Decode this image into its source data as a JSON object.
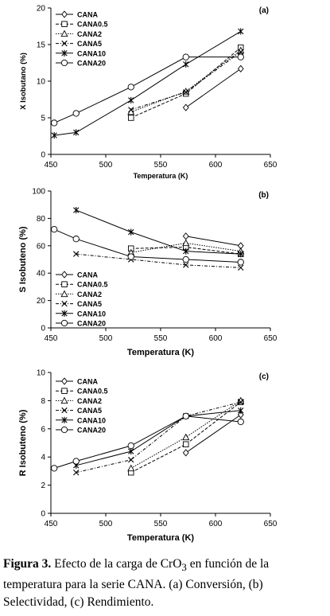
{
  "caption": {
    "label": "Figura 3.",
    "text": "Efecto de la carga de CrO",
    "subscript": "3",
    "text2": "en función de la temperatura para la serie CANA. (a) Conversión, (b) Selectividad, (c) Rendimiento."
  },
  "chart_data": [
    {
      "type": "line",
      "panel_label": "(a)",
      "xlabel": "Temperatura (K)",
      "ylabel": "X Isobutano (%)",
      "xlim": [
        450,
        650
      ],
      "ylim": [
        0,
        20
      ],
      "xticks": [
        450,
        500,
        550,
        600,
        650
      ],
      "yticks": [
        0,
        5,
        10,
        15,
        20
      ],
      "legend_position": "top-left",
      "series": [
        {
          "name": "CANA",
          "marker": "diamond",
          "x": [
            573,
            623
          ],
          "y": [
            6.4,
            11.7
          ]
        },
        {
          "name": "CANA0.5",
          "marker": "square",
          "x": [
            523,
            573,
            623
          ],
          "y": [
            5.0,
            8.3,
            14.6
          ]
        },
        {
          "name": "CANA2",
          "marker": "triangle",
          "x": [
            523,
            573,
            623
          ],
          "y": [
            5.8,
            8.6,
            14.2
          ]
        },
        {
          "name": "CANA5",
          "marker": "x",
          "x": [
            523,
            573,
            623
          ],
          "y": [
            6.1,
            8.5,
            14.0
          ]
        },
        {
          "name": "CANA10",
          "marker": "star",
          "x": [
            453,
            473,
            523,
            573,
            623
          ],
          "y": [
            2.6,
            3.0,
            7.4,
            12.3,
            16.8
          ]
        },
        {
          "name": "CANA20",
          "marker": "circle",
          "x": [
            453,
            473,
            523,
            573,
            623
          ],
          "y": [
            4.3,
            5.6,
            9.2,
            13.3,
            13.3
          ]
        }
      ]
    },
    {
      "type": "line",
      "panel_label": "(b)",
      "xlabel": "Temperatura (K)",
      "ylabel": "S Isobuteno (%)",
      "xlim": [
        450,
        650
      ],
      "ylim": [
        0,
        100
      ],
      "xticks": [
        450,
        500,
        550,
        600,
        650
      ],
      "yticks": [
        0,
        20,
        40,
        60,
        80,
        100
      ],
      "legend_position": "bottom-left",
      "series": [
        {
          "name": "CANA",
          "marker": "diamond",
          "x": [
            573,
            623
          ],
          "y": [
            67,
            60
          ]
        },
        {
          "name": "CANA0.5",
          "marker": "square",
          "x": [
            523,
            573,
            623
          ],
          "y": [
            58,
            59,
            54
          ]
        },
        {
          "name": "CANA2",
          "marker": "triangle",
          "x": [
            523,
            573,
            623
          ],
          "y": [
            55,
            62,
            56
          ]
        },
        {
          "name": "CANA5",
          "marker": "x",
          "x": [
            473,
            523,
            573,
            623
          ],
          "y": [
            54,
            50,
            46,
            44
          ]
        },
        {
          "name": "CANA10",
          "marker": "star",
          "x": [
            473,
            523,
            573,
            623
          ],
          "y": [
            86,
            70,
            56,
            54
          ]
        },
        {
          "name": "CANA20",
          "marker": "circle",
          "x": [
            453,
            473,
            523,
            573,
            623
          ],
          "y": [
            72,
            65,
            52,
            50,
            48
          ]
        }
      ]
    },
    {
      "type": "line",
      "panel_label": "(c)",
      "xlabel": "Temperatura (K)",
      "ylabel": "R Isobuteno (%)",
      "xlim": [
        450,
        650
      ],
      "ylim": [
        0,
        10
      ],
      "xticks": [
        450,
        500,
        550,
        600,
        650
      ],
      "yticks": [
        0,
        2,
        4,
        6,
        8,
        10
      ],
      "legend_position": "top-left",
      "series": [
        {
          "name": "CANA",
          "marker": "diamond",
          "x": [
            573,
            623
          ],
          "y": [
            4.3,
            7.0
          ]
        },
        {
          "name": "CANA0.5",
          "marker": "square",
          "x": [
            523,
            573,
            623
          ],
          "y": [
            2.9,
            4.9,
            7.9
          ]
        },
        {
          "name": "CANA2",
          "marker": "triangle",
          "x": [
            523,
            573,
            623
          ],
          "y": [
            3.2,
            5.4,
            8.0
          ]
        },
        {
          "name": "CANA5",
          "marker": "x",
          "x": [
            473,
            523,
            573,
            623
          ],
          "y": [
            2.9,
            3.8,
            6.9,
            7.9
          ]
        },
        {
          "name": "CANA10",
          "marker": "star",
          "x": [
            473,
            523,
            573,
            623
          ],
          "y": [
            3.4,
            4.4,
            6.9,
            7.3
          ]
        },
        {
          "name": "CANA20",
          "marker": "circle",
          "x": [
            453,
            473,
            523,
            573,
            623
          ],
          "y": [
            3.2,
            3.7,
            4.8,
            6.9,
            6.5
          ]
        }
      ]
    }
  ]
}
